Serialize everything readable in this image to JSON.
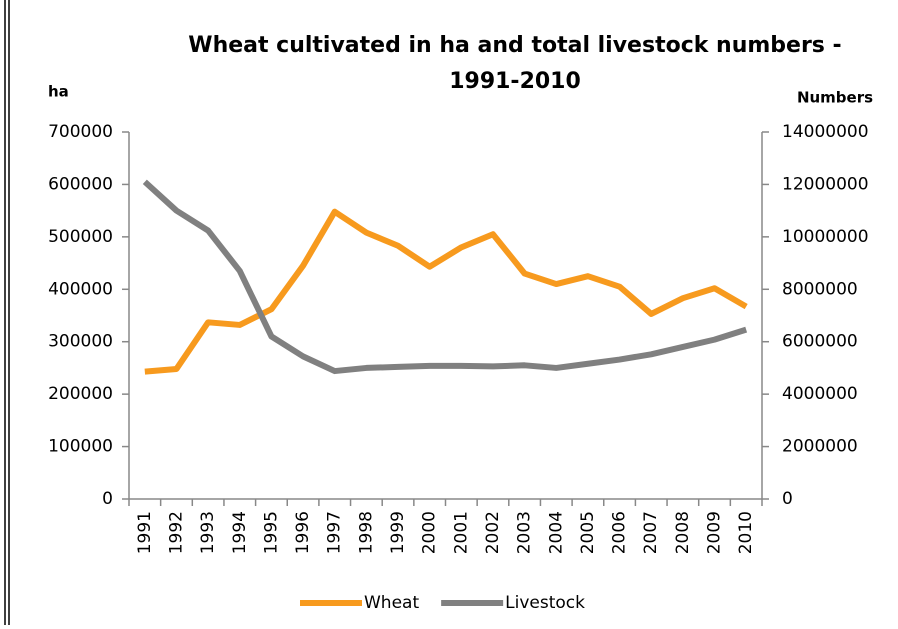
{
  "chart_data": {
    "type": "line",
    "title": [
      "Wheat cultivated in ha and total livestock numbers -",
      "1991-2010"
    ],
    "y_label": "ha",
    "y2_label": "Numbers",
    "categories": [
      "1991",
      "1992",
      "1993",
      "1994",
      "1995",
      "1996",
      "1997",
      "1998",
      "1999",
      "2000",
      "2001",
      "2002",
      "2003",
      "2004",
      "2005",
      "2006",
      "2007",
      "2008",
      "2009",
      "2010"
    ],
    "series": [
      {
        "name": "Wheat",
        "color": "#f79a1e",
        "values": [
          243000,
          248000,
          337000,
          332000,
          362000,
          445000,
          548000,
          508000,
          483000,
          443000,
          480000,
          505000,
          430000,
          410000,
          425000,
          405000,
          353000,
          383000,
          402000,
          367000
        ]
      },
      {
        "name": "Livestock",
        "color": "#808080",
        "axis": "y2",
        "values": [
          12100000,
          11000000,
          10240000,
          8700000,
          6200000,
          5440000,
          4880000,
          5000000,
          5040000,
          5080000,
          5080000,
          5060000,
          5100000,
          5000000,
          5160000,
          5320000,
          5520000,
          5800000,
          6080000,
          6460000
        ]
      }
    ],
    "ylim": [
      0,
      700000
    ],
    "yticks": [
      0,
      100000,
      200000,
      300000,
      400000,
      500000,
      600000,
      700000
    ],
    "y2lim": [
      0,
      14000000
    ],
    "y2ticks": [
      0,
      2000000,
      4000000,
      6000000,
      8000000,
      10000000,
      12000000,
      14000000
    ],
    "legend": "bottom"
  }
}
